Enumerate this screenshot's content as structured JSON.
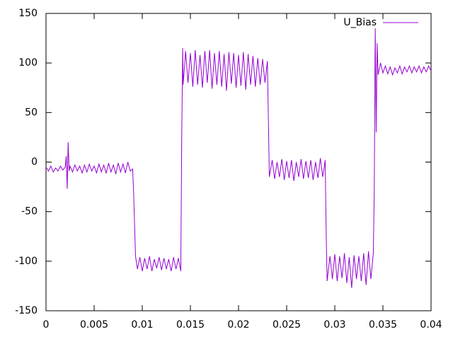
{
  "chart_data": {
    "type": "line",
    "x": [
      0,
      0.00025,
      0.0005,
      0.00075,
      0.001,
      0.00125,
      0.0015,
      0.00175,
      0.002,
      0.0021,
      0.0022,
      0.0023,
      0.0024,
      0.0025,
      0.00275,
      0.003,
      0.00325,
      0.0035,
      0.00375,
      0.004,
      0.00425,
      0.0045,
      0.00475,
      0.005,
      0.00525,
      0.0055,
      0.00575,
      0.006,
      0.00625,
      0.0065,
      0.00675,
      0.007,
      0.00725,
      0.0075,
      0.00775,
      0.008,
      0.00825,
      0.0085,
      0.00875,
      0.009,
      0.0091,
      0.0093,
      0.0095,
      0.00975,
      0.01,
      0.01025,
      0.0105,
      0.01075,
      0.011,
      0.01125,
      0.0115,
      0.01175,
      0.012,
      0.01225,
      0.0125,
      0.01275,
      0.013,
      0.01325,
      0.0135,
      0.01375,
      0.014,
      0.0141,
      0.0142,
      0.01425,
      0.0145,
      0.01475,
      0.015,
      0.01525,
      0.0155,
      0.01575,
      0.016,
      0.01625,
      0.0165,
      0.01675,
      0.017,
      0.01725,
      0.0175,
      0.01775,
      0.018,
      0.01825,
      0.0185,
      0.01875,
      0.019,
      0.01925,
      0.0195,
      0.01975,
      0.02,
      0.02025,
      0.0205,
      0.02075,
      0.021,
      0.02125,
      0.0215,
      0.02175,
      0.022,
      0.02225,
      0.0225,
      0.02275,
      0.023,
      0.0232,
      0.0235,
      0.02375,
      0.024,
      0.02425,
      0.0245,
      0.02475,
      0.025,
      0.02525,
      0.0255,
      0.02575,
      0.026,
      0.02625,
      0.0265,
      0.02675,
      0.027,
      0.02725,
      0.0275,
      0.02775,
      0.028,
      0.02825,
      0.0285,
      0.02875,
      0.029,
      0.0291,
      0.0292,
      0.0295,
      0.02975,
      0.03,
      0.03025,
      0.0305,
      0.03075,
      0.031,
      0.03125,
      0.0315,
      0.03175,
      0.032,
      0.03225,
      0.0325,
      0.03275,
      0.033,
      0.03325,
      0.0335,
      0.03375,
      0.034,
      0.0341,
      0.0342,
      0.0343,
      0.0344,
      0.0345,
      0.03475,
      0.035,
      0.03525,
      0.0355,
      0.03575,
      0.036,
      0.03625,
      0.0365,
      0.03675,
      0.037,
      0.03725,
      0.0375,
      0.03775,
      0.038,
      0.03825,
      0.0385,
      0.03875,
      0.039,
      0.03925,
      0.0395,
      0.03975,
      0.04
    ],
    "series": [
      {
        "name": "U_Bias",
        "color": "#9400d3",
        "values": [
          -5,
          -9,
          -4,
          -10,
          -6,
          -9,
          -4,
          -8,
          -5,
          6,
          -27,
          20,
          -9,
          -4,
          -10,
          -3,
          -9,
          -4,
          -11,
          -3,
          -10,
          -2,
          -9,
          -4,
          -11,
          -2,
          -10,
          -3,
          -11,
          -1,
          -10,
          -3,
          -12,
          -1,
          -10,
          -2,
          -11,
          0,
          -9,
          -7,
          -30,
          -95,
          -108,
          -96,
          -110,
          -97,
          -108,
          -95,
          -110,
          -98,
          -107,
          -96,
          -109,
          -97,
          -108,
          -98,
          -110,
          -96,
          -108,
          -97,
          -110,
          27,
          115,
          78,
          112,
          80,
          110,
          76,
          113,
          78,
          108,
          75,
          112,
          80,
          113,
          74,
          110,
          78,
          112,
          76,
          109,
          72,
          111,
          79,
          110,
          75,
          108,
          77,
          111,
          73,
          109,
          78,
          107,
          76,
          105,
          78,
          104,
          80,
          102,
          -15,
          2,
          -17,
          0,
          -15,
          3,
          -18,
          1,
          -16,
          2,
          -19,
          0,
          -15,
          3,
          -17,
          1,
          -16,
          2,
          -18,
          0,
          -16,
          4,
          -15,
          2,
          -68,
          -120,
          -95,
          -118,
          -93,
          -120,
          -95,
          -117,
          -92,
          -122,
          -96,
          -127,
          -94,
          -118,
          -95,
          -120,
          -92,
          -124,
          -90,
          -118,
          -92,
          -30,
          135,
          30,
          120,
          88,
          100,
          90,
          97,
          89,
          96,
          88,
          95,
          90,
          97,
          89,
          96,
          91,
          97,
          90,
          96,
          91,
          97,
          90,
          96,
          91,
          97,
          92
        ]
      }
    ],
    "xlim": [
      0,
      0.04
    ],
    "xticks": [
      0,
      0.005,
      0.01,
      0.015,
      0.02,
      0.025,
      0.03,
      0.035,
      0.04
    ],
    "ylim": [
      -150,
      150
    ],
    "yticks": [
      -150,
      -100,
      -50,
      0,
      50,
      100,
      150
    ],
    "legend": "top-right"
  }
}
